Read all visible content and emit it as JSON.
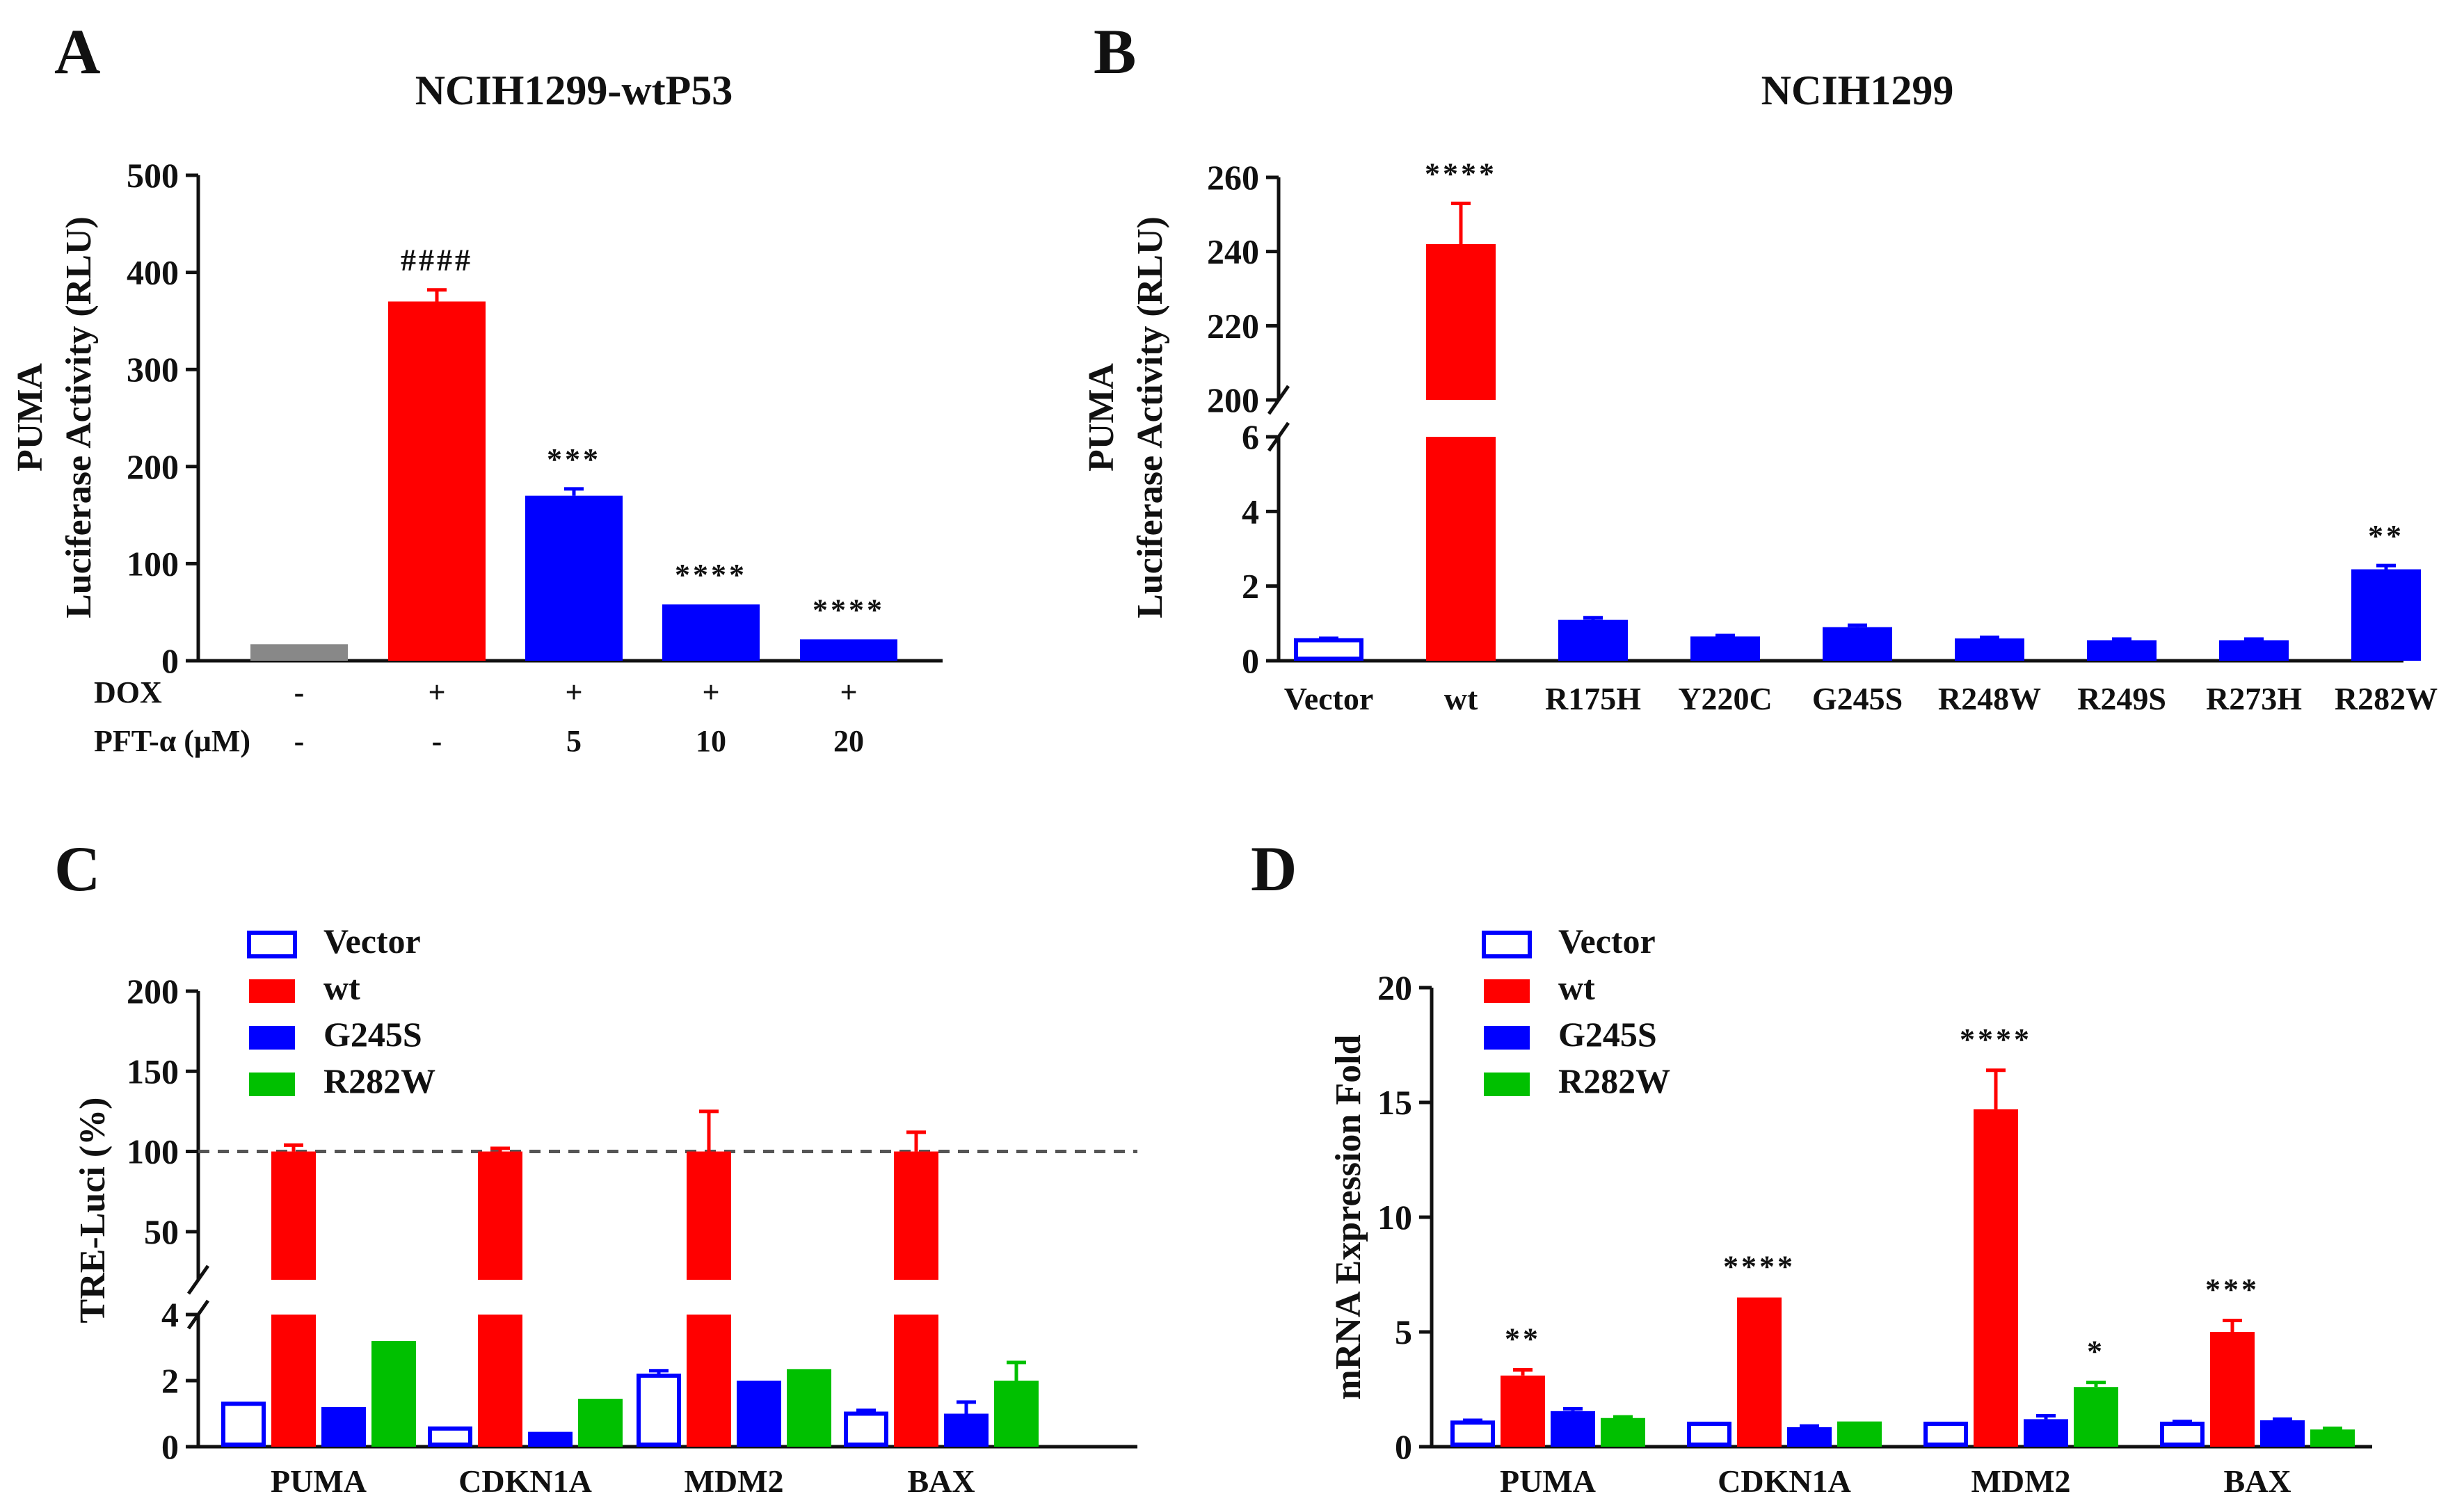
{
  "chart_data": [
    {
      "panel": "A",
      "type": "bar",
      "title": "NCIH1299-wtP53",
      "ylabel_line1": "PUMA",
      "ylabel_line2": "Luciferase Activity (RLU)",
      "ylim": [
        0,
        500
      ],
      "yticks": [
        "0",
        "100",
        "200",
        "300",
        "400",
        "500"
      ],
      "values": [
        17,
        370,
        170,
        58,
        22
      ],
      "errors": [
        0,
        12,
        7,
        0,
        0
      ],
      "colors": [
        "#888888",
        "#ff0000",
        "#0000ff",
        "#0000ff",
        "#0000ff"
      ],
      "annotations": [
        "",
        "####",
        "***",
        "****",
        "****"
      ],
      "table": {
        "row_labels": [
          "DOX",
          "PFT-α (μM)"
        ],
        "rows": [
          [
            "-",
            "+",
            "+",
            "+",
            "+"
          ],
          [
            "-",
            "-",
            "5",
            "10",
            "20"
          ]
        ]
      }
    },
    {
      "panel": "B",
      "type": "bar",
      "title": "NCIH1299",
      "ylabel_line1": "PUMA",
      "ylabel_line2": "Luciferase Activity (RLU)",
      "axis_break": {
        "lower": [
          0,
          6
        ],
        "upper": [
          200,
          260
        ]
      },
      "yticks_lower": [
        "0",
        "2",
        "4",
        "6"
      ],
      "yticks_upper": [
        "200",
        "220",
        "240",
        "260"
      ],
      "categories": [
        "Vector",
        "wt",
        "R175H",
        "Y220C",
        "G245S",
        "R248W",
        "R249S",
        "R273H",
        "R282W"
      ],
      "values": [
        0.55,
        242,
        1.1,
        0.65,
        0.9,
        0.6,
        0.55,
        0.55,
        2.45
      ],
      "errors": [
        0.05,
        11,
        0.05,
        0.03,
        0.05,
        0.03,
        0.03,
        0.03,
        0.1
      ],
      "annotations": [
        "",
        "****",
        "",
        "",
        "",
        "",
        "",
        "",
        "**"
      ]
    },
    {
      "panel": "C",
      "type": "bar",
      "ylabel": "TRE-Luci (%)",
      "axis_break": {
        "lower": [
          0,
          4
        ],
        "upper": [
          20,
          200
        ]
      },
      "yticks_lower": [
        "0",
        "2",
        "4"
      ],
      "yticks_upper": [
        "50",
        "100",
        "150",
        "200"
      ],
      "reference_line": 100,
      "categories": [
        "PUMA",
        "CDKN1A",
        "MDM2",
        "BAX"
      ],
      "series": [
        {
          "name": "Vector",
          "values": [
            1.3,
            0.55,
            2.15,
            1.0
          ],
          "errors": [
            0,
            0,
            0.15,
            0.1
          ]
        },
        {
          "name": "wt",
          "values": [
            100,
            100,
            100,
            100
          ],
          "errors": [
            4,
            2,
            25,
            12
          ]
        },
        {
          "name": "G245S",
          "values": [
            1.2,
            0.45,
            2.0,
            1.0
          ],
          "errors": [
            0,
            0,
            0,
            0.35
          ]
        },
        {
          "name": "R282W",
          "values": [
            3.2,
            1.45,
            2.35,
            2.0
          ],
          "errors": [
            0,
            0,
            0,
            0.55
          ]
        }
      ]
    },
    {
      "panel": "D",
      "type": "bar",
      "ylabel": "mRNA Expression Fold",
      "ylim": [
        0,
        20
      ],
      "yticks": [
        "0",
        "5",
        "10",
        "15",
        "20"
      ],
      "categories": [
        "PUMA",
        "CDKN1A",
        "MDM2",
        "BAX"
      ],
      "series": [
        {
          "name": "Vector",
          "values": [
            1.05,
            1.0,
            1.0,
            1.0
          ],
          "errors": [
            0.1,
            0,
            0,
            0.1
          ]
        },
        {
          "name": "wt",
          "values": [
            3.1,
            6.5,
            14.7,
            5.0
          ],
          "errors": [
            0.25,
            0,
            1.7,
            0.5
          ]
        },
        {
          "name": "G245S",
          "values": [
            1.55,
            0.85,
            1.2,
            1.15
          ],
          "errors": [
            0.1,
            0.05,
            0.15,
            0.05
          ]
        },
        {
          "name": "R282W",
          "values": [
            1.25,
            1.1,
            2.6,
            0.75
          ],
          "errors": [
            0.05,
            0,
            0.2,
            0.05
          ]
        }
      ],
      "annotations": {
        "wt": [
          "**",
          "****",
          "****",
          "***"
        ],
        "R282W": [
          "",
          "",
          "*",
          ""
        ]
      }
    }
  ],
  "panel_labels": [
    "A",
    "B",
    "C",
    "D"
  ],
  "colors": {
    "vector": "#0000ff",
    "wt": "#ff0000",
    "G245S": "#0000ff",
    "R282W": "#00c000",
    "gray": "#888888",
    "axis": "#111111"
  }
}
